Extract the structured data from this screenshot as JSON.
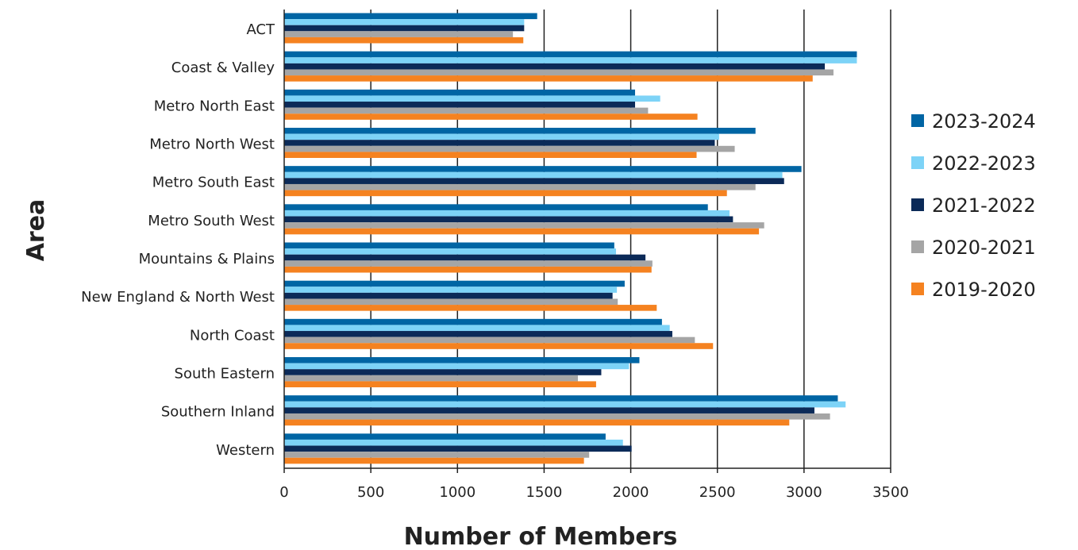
{
  "chart_data": {
    "type": "bar",
    "orientation": "horizontal",
    "categories": [
      "ACT",
      "Coast & Valley",
      "Metro North East",
      "Metro North West",
      "Metro South East",
      "Metro South West",
      "Mountains & Plains",
      "New England & North West",
      "North Coast",
      "South Eastern",
      "Southern Inland",
      "Western"
    ],
    "series": [
      {
        "name": "2023-2024",
        "color": "#0065a4",
        "values": [
          1460,
          3305,
          2025,
          2720,
          2985,
          2445,
          1905,
          1965,
          2180,
          2050,
          3195,
          1855
        ]
      },
      {
        "name": "2022-2023",
        "color": "#7dd3f7",
        "values": [
          1385,
          3305,
          2170,
          2510,
          2875,
          2570,
          1915,
          1920,
          2225,
          1990,
          3240,
          1955
        ]
      },
      {
        "name": "2021-2022",
        "color": "#0b2a58",
        "values": [
          1385,
          3120,
          2025,
          2485,
          2885,
          2590,
          2085,
          1895,
          2240,
          1830,
          3060,
          2005
        ]
      },
      {
        "name": "2020-2021",
        "color": "#a5a5a5",
        "values": [
          1320,
          3170,
          2100,
          2600,
          2720,
          2770,
          2125,
          1925,
          2370,
          1695,
          3150,
          1760
        ]
      },
      {
        "name": "2019-2020",
        "color": "#f58220",
        "values": [
          1380,
          3050,
          2385,
          2380,
          2555,
          2740,
          2120,
          2150,
          2475,
          1800,
          2915,
          1730
        ]
      }
    ],
    "xlabel": "Number of Members",
    "ylabel": "Area",
    "xlim": [
      0,
      3500
    ],
    "xticks": [
      0,
      500,
      1000,
      1500,
      2000,
      2500,
      3000,
      3500
    ],
    "grid": "vertical",
    "legend_position": "right",
    "title": ""
  }
}
